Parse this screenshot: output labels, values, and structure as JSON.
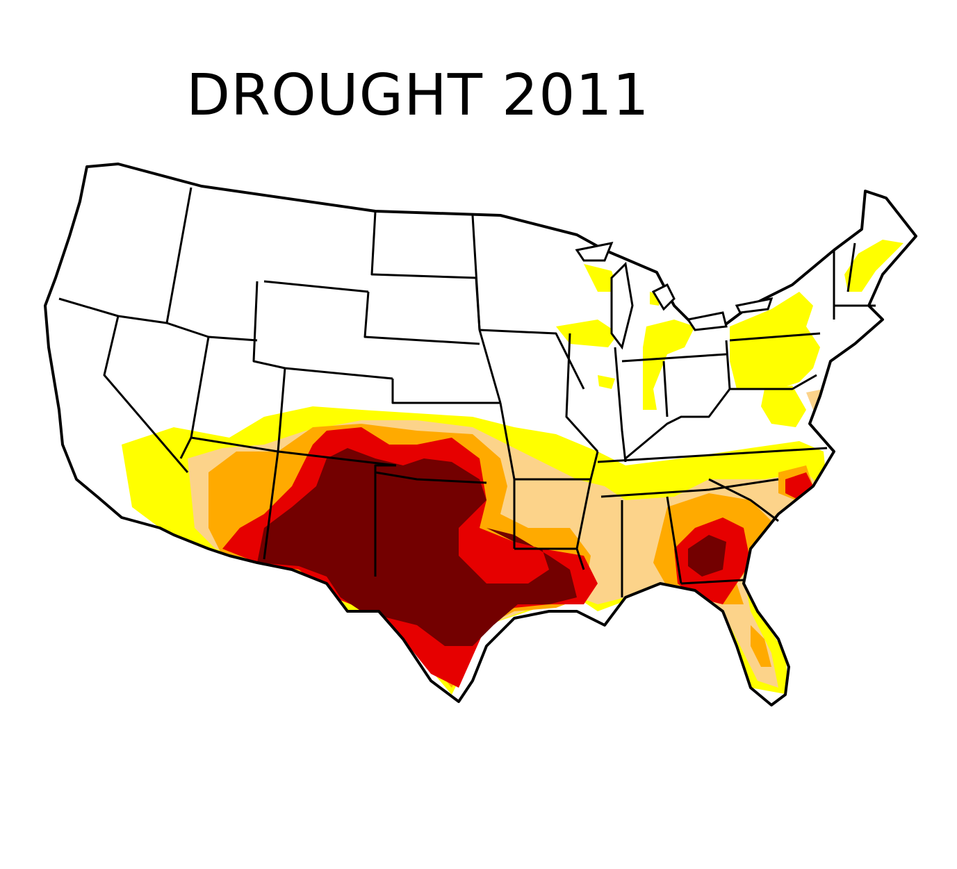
{
  "title": "DROUGHT 2011",
  "legend_colors": {
    "abnormally_dry": "#ffff00",
    "moderate": "#fcd38a",
    "severe": "#ffaa00",
    "extreme": "#e60000",
    "exceptional": "#730000",
    "none": "#ffffff",
    "boundary": "#000000"
  }
}
